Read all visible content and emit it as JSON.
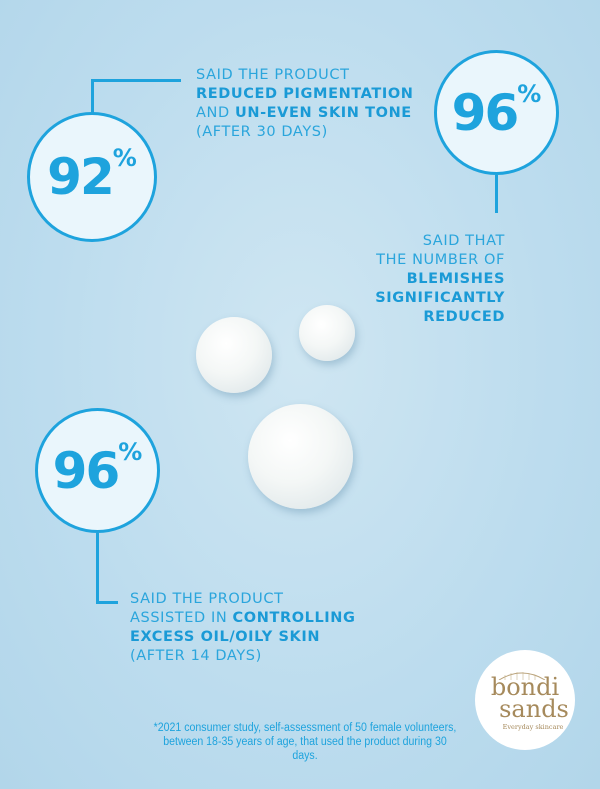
{
  "stats": [
    {
      "value": "92",
      "unit": "%",
      "lines": [
        {
          "parts": [
            {
              "text": "SAID THE PRODUCT",
              "bold": false
            }
          ]
        },
        {
          "parts": [
            {
              "text": "REDUCED PIGMENTATION",
              "bold": true
            }
          ]
        },
        {
          "parts": [
            {
              "text": "AND ",
              "bold": false
            },
            {
              "text": "UN-EVEN SKIN TONE",
              "bold": true
            }
          ]
        },
        {
          "parts": [
            {
              "text": "(AFTER 30 DAYS)",
              "bold": false
            }
          ]
        }
      ]
    },
    {
      "value": "96",
      "unit": "%",
      "lines": [
        {
          "parts": [
            {
              "text": "SAID THAT",
              "bold": false
            }
          ]
        },
        {
          "parts": [
            {
              "text": "THE NUMBER OF",
              "bold": false
            }
          ]
        },
        {
          "parts": [
            {
              "text": "BLEMISHES",
              "bold": true
            }
          ]
        },
        {
          "parts": [
            {
              "text": "SIGNIFICANTLY",
              "bold": true
            }
          ]
        },
        {
          "parts": [
            {
              "text": "REDUCED",
              "bold": true
            }
          ]
        }
      ]
    },
    {
      "value": "96",
      "unit": "%",
      "lines": [
        {
          "parts": [
            {
              "text": "SAID THE PRODUCT",
              "bold": false
            }
          ]
        },
        {
          "parts": [
            {
              "text": "ASSISTED IN ",
              "bold": false
            },
            {
              "text": "CONTROLLING",
              "bold": true
            }
          ]
        },
        {
          "parts": [
            {
              "text": "EXCESS OIL/OILY SKIN",
              "bold": true
            }
          ]
        },
        {
          "parts": [
            {
              "text": "(AFTER 14 DAYS)",
              "bold": false
            }
          ]
        }
      ]
    }
  ],
  "footnote": {
    "line1": "*2021 consumer study, self-assessment of 50 female volunteers,",
    "line2": "between 18-35 years of age, that used the product during 30 days."
  },
  "logo": {
    "word1": "bondi",
    "word2": "sands",
    "tagline": "Everyday skincare"
  },
  "colors": {
    "accent": "#1ea3dd",
    "background": "#bcdcee",
    "logo": "#a68a5c"
  }
}
